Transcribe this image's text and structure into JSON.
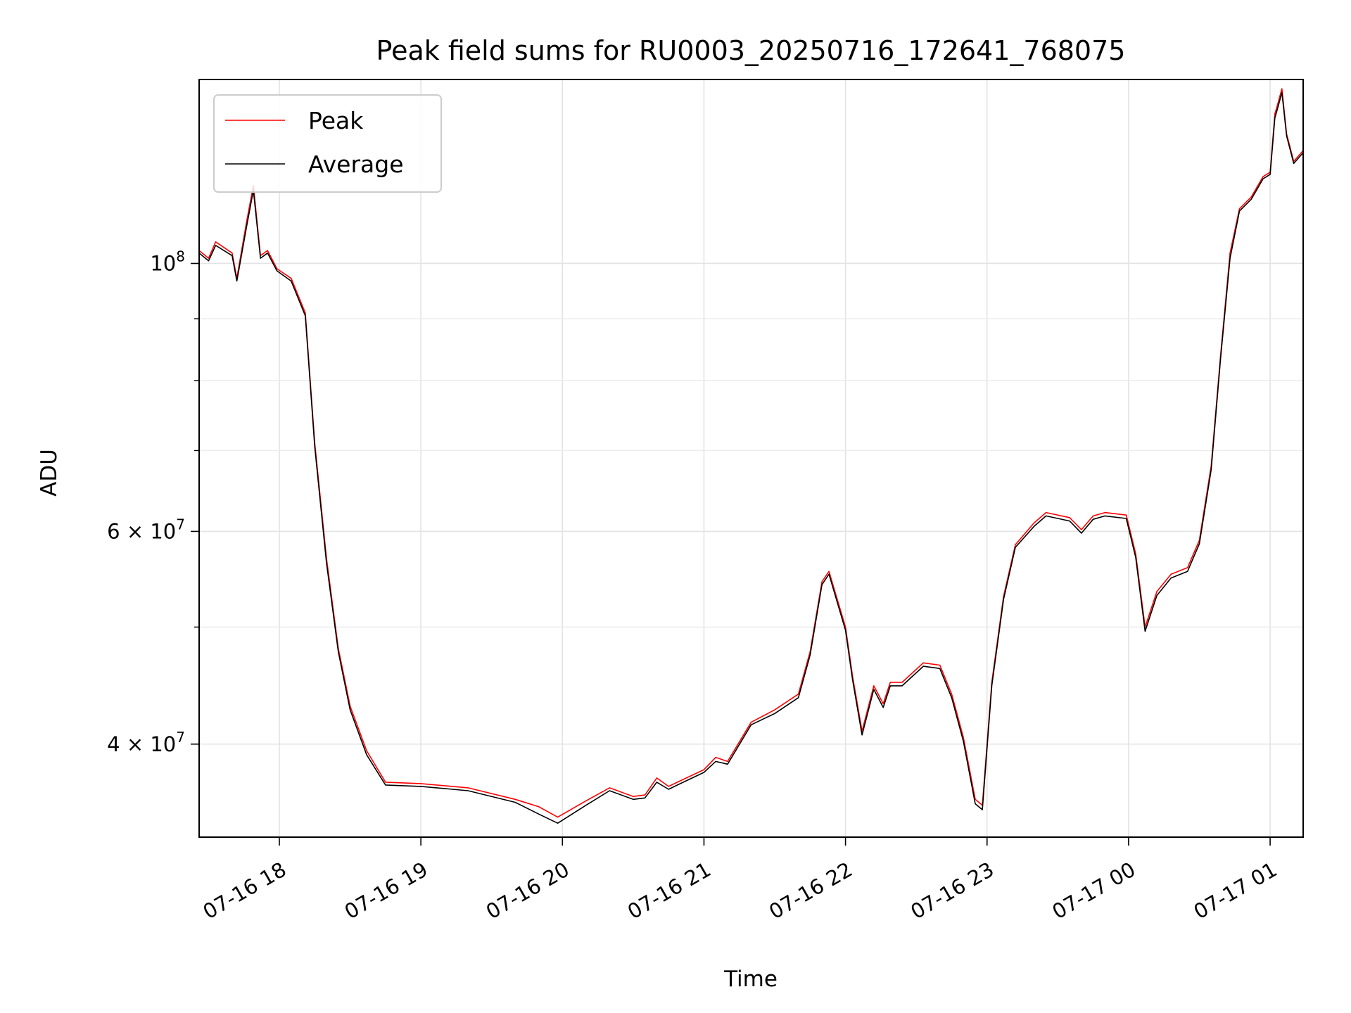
{
  "chart_data": {
    "type": "line",
    "title": "Peak field sums for RU0003_20250716_172641_768075",
    "xlabel": "Time",
    "ylabel": "ADU",
    "y_scale": "log",
    "ylim": [
      33500000,
      142000000
    ],
    "xlim": [
      "2025-07-16 17:26",
      "2025-07-17 01:14"
    ],
    "grid": true,
    "legend_position": "upper left",
    "x_ticks": [
      {
        "value": "2025-07-16 18:00",
        "label": "07-16 18"
      },
      {
        "value": "2025-07-16 19:00",
        "label": "07-16 19"
      },
      {
        "value": "2025-07-16 20:00",
        "label": "07-16 20"
      },
      {
        "value": "2025-07-16 21:00",
        "label": "07-16 21"
      },
      {
        "value": "2025-07-16 22:00",
        "label": "07-16 22"
      },
      {
        "value": "2025-07-16 23:00",
        "label": "07-16 23"
      },
      {
        "value": "2025-07-17 00:00",
        "label": "07-17 00"
      },
      {
        "value": "2025-07-17 01:00",
        "label": "07-17 01"
      }
    ],
    "y_major_ticks": [
      {
        "value": 40000000,
        "mantissa": "4",
        "sep": " × ",
        "base": "10",
        "exp": "7"
      },
      {
        "value": 60000000,
        "mantissa": "6",
        "sep": " × ",
        "base": "10",
        "exp": "7"
      },
      {
        "value": 100000000,
        "mantissa": "",
        "sep": "",
        "base": "10",
        "exp": "8"
      }
    ],
    "y_minor_ticks": [
      50000000,
      70000000,
      80000000,
      90000000
    ],
    "series": [
      {
        "name": "Peak",
        "color": "#ff0000",
        "x": [
          "2025-07-16 17:26",
          "2025-07-16 17:30",
          "2025-07-16 17:33",
          "2025-07-16 17:40",
          "2025-07-16 17:42",
          "2025-07-16 17:46",
          "2025-07-16 17:49",
          "2025-07-16 17:52",
          "2025-07-16 17:55",
          "2025-07-16 17:59",
          "2025-07-16 18:05",
          "2025-07-16 18:11",
          "2025-07-16 18:15",
          "2025-07-16 18:20",
          "2025-07-16 18:25",
          "2025-07-16 18:30",
          "2025-07-16 18:37",
          "2025-07-16 18:45",
          "2025-07-16 19:00",
          "2025-07-16 19:20",
          "2025-07-16 19:40",
          "2025-07-16 19:50",
          "2025-07-16 19:58",
          "2025-07-16 20:10",
          "2025-07-16 20:20",
          "2025-07-16 20:30",
          "2025-07-16 20:35",
          "2025-07-16 20:40",
          "2025-07-16 20:45",
          "2025-07-16 20:50",
          "2025-07-16 21:00",
          "2025-07-16 21:05",
          "2025-07-16 21:10",
          "2025-07-16 21:20",
          "2025-07-16 21:30",
          "2025-07-16 21:40",
          "2025-07-16 21:45",
          "2025-07-16 21:50",
          "2025-07-16 21:53",
          "2025-07-16 22:00",
          "2025-07-16 22:03",
          "2025-07-16 22:07",
          "2025-07-16 22:12",
          "2025-07-16 22:16",
          "2025-07-16 22:19",
          "2025-07-16 22:24",
          "2025-07-16 22:33",
          "2025-07-16 22:40",
          "2025-07-16 22:45",
          "2025-07-16 22:50",
          "2025-07-16 22:55",
          "2025-07-16 22:58",
          "2025-07-16 23:02",
          "2025-07-16 23:07",
          "2025-07-16 23:12",
          "2025-07-16 23:20",
          "2025-07-16 23:25",
          "2025-07-16 23:35",
          "2025-07-16 23:40",
          "2025-07-16 23:45",
          "2025-07-16 23:50",
          "2025-07-16 23:59",
          "2025-07-17 00:03",
          "2025-07-17 00:07",
          "2025-07-17 00:12",
          "2025-07-17 00:18",
          "2025-07-17 00:25",
          "2025-07-17 00:30",
          "2025-07-17 00:35",
          "2025-07-17 00:39",
          "2025-07-17 00:43",
          "2025-07-17 00:47",
          "2025-07-17 00:52",
          "2025-07-17 00:57",
          "2025-07-17 01:00",
          "2025-07-17 01:02",
          "2025-07-17 01:03",
          "2025-07-17 01:05",
          "2025-07-17 01:07",
          "2025-07-17 01:10",
          "2025-07-17 01:14"
        ],
        "values": [
          102500000,
          101000000,
          104200000,
          102000000,
          97200000,
          108000000,
          116000000,
          101500000,
          102500000,
          99000000,
          97200000,
          91000000,
          71000000,
          57000000,
          48000000,
          43000000,
          39500000,
          37200000,
          37100000,
          36800000,
          36000000,
          35500000,
          34800000,
          35900000,
          36800000,
          36200000,
          36300000,
          37500000,
          36900000,
          37300000,
          38100000,
          39000000,
          38700000,
          41700000,
          42700000,
          44000000,
          47700000,
          54500000,
          55600000,
          50000000,
          45500000,
          41000000,
          44700000,
          43200000,
          45000000,
          45000000,
          46700000,
          46500000,
          44000000,
          40500000,
          36000000,
          35600000,
          45000000,
          53000000,
          58500000,
          61000000,
          62200000,
          61600000,
          60200000,
          61800000,
          62200000,
          61900000,
          57500000,
          50000000,
          53500000,
          55300000,
          56000000,
          59000000,
          68000000,
          84000000,
          102000000,
          111000000,
          113500000,
          118000000,
          119000000,
          133000000,
          135000000,
          139500000,
          128000000,
          121500000,
          124000000
        ]
      },
      {
        "name": "Average",
        "color": "#000000",
        "x": [
          "2025-07-16 17:26",
          "2025-07-16 17:30",
          "2025-07-16 17:33",
          "2025-07-16 17:40",
          "2025-07-16 17:42",
          "2025-07-16 17:46",
          "2025-07-16 17:49",
          "2025-07-16 17:52",
          "2025-07-16 17:55",
          "2025-07-16 17:59",
          "2025-07-16 18:05",
          "2025-07-16 18:11",
          "2025-07-16 18:15",
          "2025-07-16 18:20",
          "2025-07-16 18:25",
          "2025-07-16 18:30",
          "2025-07-16 18:37",
          "2025-07-16 18:45",
          "2025-07-16 19:00",
          "2025-07-16 19:20",
          "2025-07-16 19:40",
          "2025-07-16 19:50",
          "2025-07-16 19:58",
          "2025-07-16 20:10",
          "2025-07-16 20:20",
          "2025-07-16 20:30",
          "2025-07-16 20:35",
          "2025-07-16 20:40",
          "2025-07-16 20:45",
          "2025-07-16 20:50",
          "2025-07-16 21:00",
          "2025-07-16 21:05",
          "2025-07-16 21:10",
          "2025-07-16 21:20",
          "2025-07-16 21:30",
          "2025-07-16 21:40",
          "2025-07-16 21:45",
          "2025-07-16 21:50",
          "2025-07-16 21:53",
          "2025-07-16 22:00",
          "2025-07-16 22:03",
          "2025-07-16 22:07",
          "2025-07-16 22:12",
          "2025-07-16 22:16",
          "2025-07-16 22:19",
          "2025-07-16 22:24",
          "2025-07-16 22:33",
          "2025-07-16 22:40",
          "2025-07-16 22:45",
          "2025-07-16 22:50",
          "2025-07-16 22:55",
          "2025-07-16 22:58",
          "2025-07-16 23:02",
          "2025-07-16 23:07",
          "2025-07-16 23:12",
          "2025-07-16 23:20",
          "2025-07-16 23:25",
          "2025-07-16 23:35",
          "2025-07-16 23:40",
          "2025-07-16 23:45",
          "2025-07-16 23:50",
          "2025-07-16 23:59",
          "2025-07-17 00:03",
          "2025-07-17 00:07",
          "2025-07-17 00:12",
          "2025-07-17 00:18",
          "2025-07-17 00:25",
          "2025-07-17 00:30",
          "2025-07-17 00:35",
          "2025-07-17 00:39",
          "2025-07-17 00:43",
          "2025-07-17 00:47",
          "2025-07-17 00:52",
          "2025-07-17 00:57",
          "2025-07-17 01:00",
          "2025-07-17 01:02",
          "2025-07-17 01:03",
          "2025-07-17 01:05",
          "2025-07-17 01:07",
          "2025-07-17 01:10",
          "2025-07-17 01:14"
        ],
        "values": [
          102000000,
          100500000,
          103500000,
          101500000,
          96700000,
          107000000,
          115000000,
          101000000,
          102000000,
          98600000,
          96700000,
          90500000,
          70500000,
          56500000,
          47700000,
          42700000,
          39200000,
          37000000,
          36900000,
          36600000,
          35800000,
          35000000,
          34400000,
          35600000,
          36600000,
          36000000,
          36100000,
          37200000,
          36700000,
          37100000,
          37900000,
          38700000,
          38500000,
          41500000,
          42400000,
          43700000,
          47400000,
          54200000,
          55300000,
          49700000,
          45200000,
          40700000,
          44400000,
          42900000,
          44700000,
          44700000,
          46400000,
          46200000,
          43700000,
          40200000,
          35700000,
          35300000,
          44700000,
          52700000,
          58200000,
          60600000,
          61800000,
          61200000,
          59800000,
          61400000,
          61800000,
          61500000,
          57100000,
          49600000,
          53100000,
          54900000,
          55600000,
          58600000,
          67500000,
          83500000,
          101000000,
          110500000,
          113000000,
          117500000,
          118500000,
          132000000,
          134000000,
          138500000,
          127500000,
          121000000,
          123500000
        ]
      }
    ]
  }
}
